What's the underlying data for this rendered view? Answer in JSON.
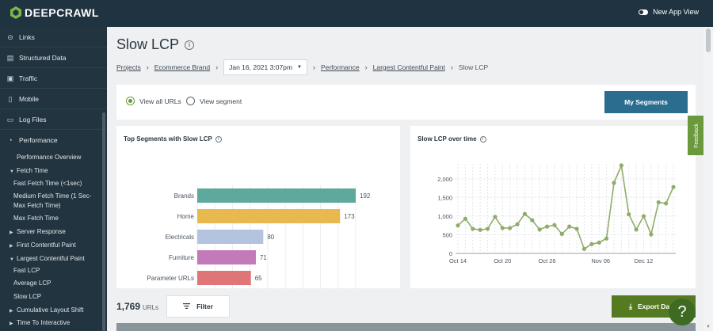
{
  "topbar": {
    "logo_text": "DEEPCRAWL",
    "new_app_label": "New App View"
  },
  "sidebar": {
    "items": [
      {
        "label": "Links",
        "icon": "link-icon"
      },
      {
        "label": "Structured Data",
        "icon": "structured-data-icon"
      },
      {
        "label": "Traffic",
        "icon": "traffic-icon"
      },
      {
        "label": "Mobile",
        "icon": "mobile-icon"
      },
      {
        "label": "Log Files",
        "icon": "log-files-icon"
      },
      {
        "label": "Performance",
        "icon": "performance-icon"
      }
    ],
    "sub": [
      {
        "label": "Performance Overview",
        "level": 1,
        "caret": ""
      },
      {
        "label": "Fetch Time",
        "level": 1,
        "caret": "▼"
      },
      {
        "label": "Fast Fetch Time (<1sec)",
        "level": 2,
        "caret": ""
      },
      {
        "label": "Medium Fetch Time (1 Sec-",
        "level": 2,
        "caret": ""
      },
      {
        "label": "Max Fetch Time)",
        "level": 2,
        "caret": ""
      },
      {
        "label": "Max Fetch Time",
        "level": 2,
        "caret": ""
      },
      {
        "label": "Server Response",
        "level": 1,
        "caret": "▶"
      },
      {
        "label": "First Contentful Paint",
        "level": 1,
        "caret": "▶"
      },
      {
        "label": "Largest Contentful Paint",
        "level": 1,
        "caret": "▼"
      },
      {
        "label": "Fast LCP",
        "level": 2,
        "caret": ""
      },
      {
        "label": "Average LCP",
        "level": 2,
        "caret": ""
      },
      {
        "label": "Slow LCP",
        "level": 2,
        "caret": ""
      },
      {
        "label": "Cumulative Layout Shift",
        "level": 1,
        "caret": "▶"
      },
      {
        "label": "Time To Interactive",
        "level": 1,
        "caret": "▶"
      }
    ]
  },
  "page": {
    "title": "Slow LCP"
  },
  "breadcrumb": {
    "projects": "Projects",
    "brand": "Ecommerce Brand",
    "date": "Jan 16, 2021 3:07pm",
    "performance": "Performance",
    "lcp": "Largest Contentful Paint",
    "current": "Slow LCP"
  },
  "segments": {
    "view_all": "View all URLs",
    "view_segment": "View segment",
    "my_segments": "My Segments"
  },
  "chart_data": [
    {
      "type": "bar",
      "title": "Top Segments with Slow LCP",
      "categories": [
        "Brands",
        "Home",
        "Electricals",
        "Furniture",
        "Parameter URLs"
      ],
      "values": [
        192,
        173,
        80,
        71,
        65
      ],
      "colors": [
        "#5fa89c",
        "#e8b94f",
        "#b3c3e0",
        "#c37ab9",
        "#df7577"
      ],
      "orientation": "horizontal",
      "xlim": [
        0,
        192
      ]
    },
    {
      "type": "line",
      "title": "Slow LCP over time",
      "x_ticks": [
        "Oct 14",
        "Oct 20",
        "Oct 26",
        "Nov 06",
        "Dec 12"
      ],
      "y_ticks": [
        "0",
        "500",
        "1,000",
        "1,500",
        "2,000"
      ],
      "ylim": [
        0,
        2400
      ],
      "color": "#8fad6a",
      "values": [
        750,
        930,
        660,
        630,
        660,
        980,
        680,
        680,
        780,
        1060,
        890,
        640,
        720,
        760,
        520,
        720,
        660,
        120,
        250,
        290,
        400,
        1890,
        2360,
        1050,
        640,
        1000,
        510,
        1370,
        1340,
        1780
      ]
    }
  ],
  "results": {
    "count": "1,769",
    "unit": "URLs",
    "filter_label": "Filter",
    "export_label": "Export Da"
  },
  "feedback_label": "Feedback",
  "help_label": "?"
}
